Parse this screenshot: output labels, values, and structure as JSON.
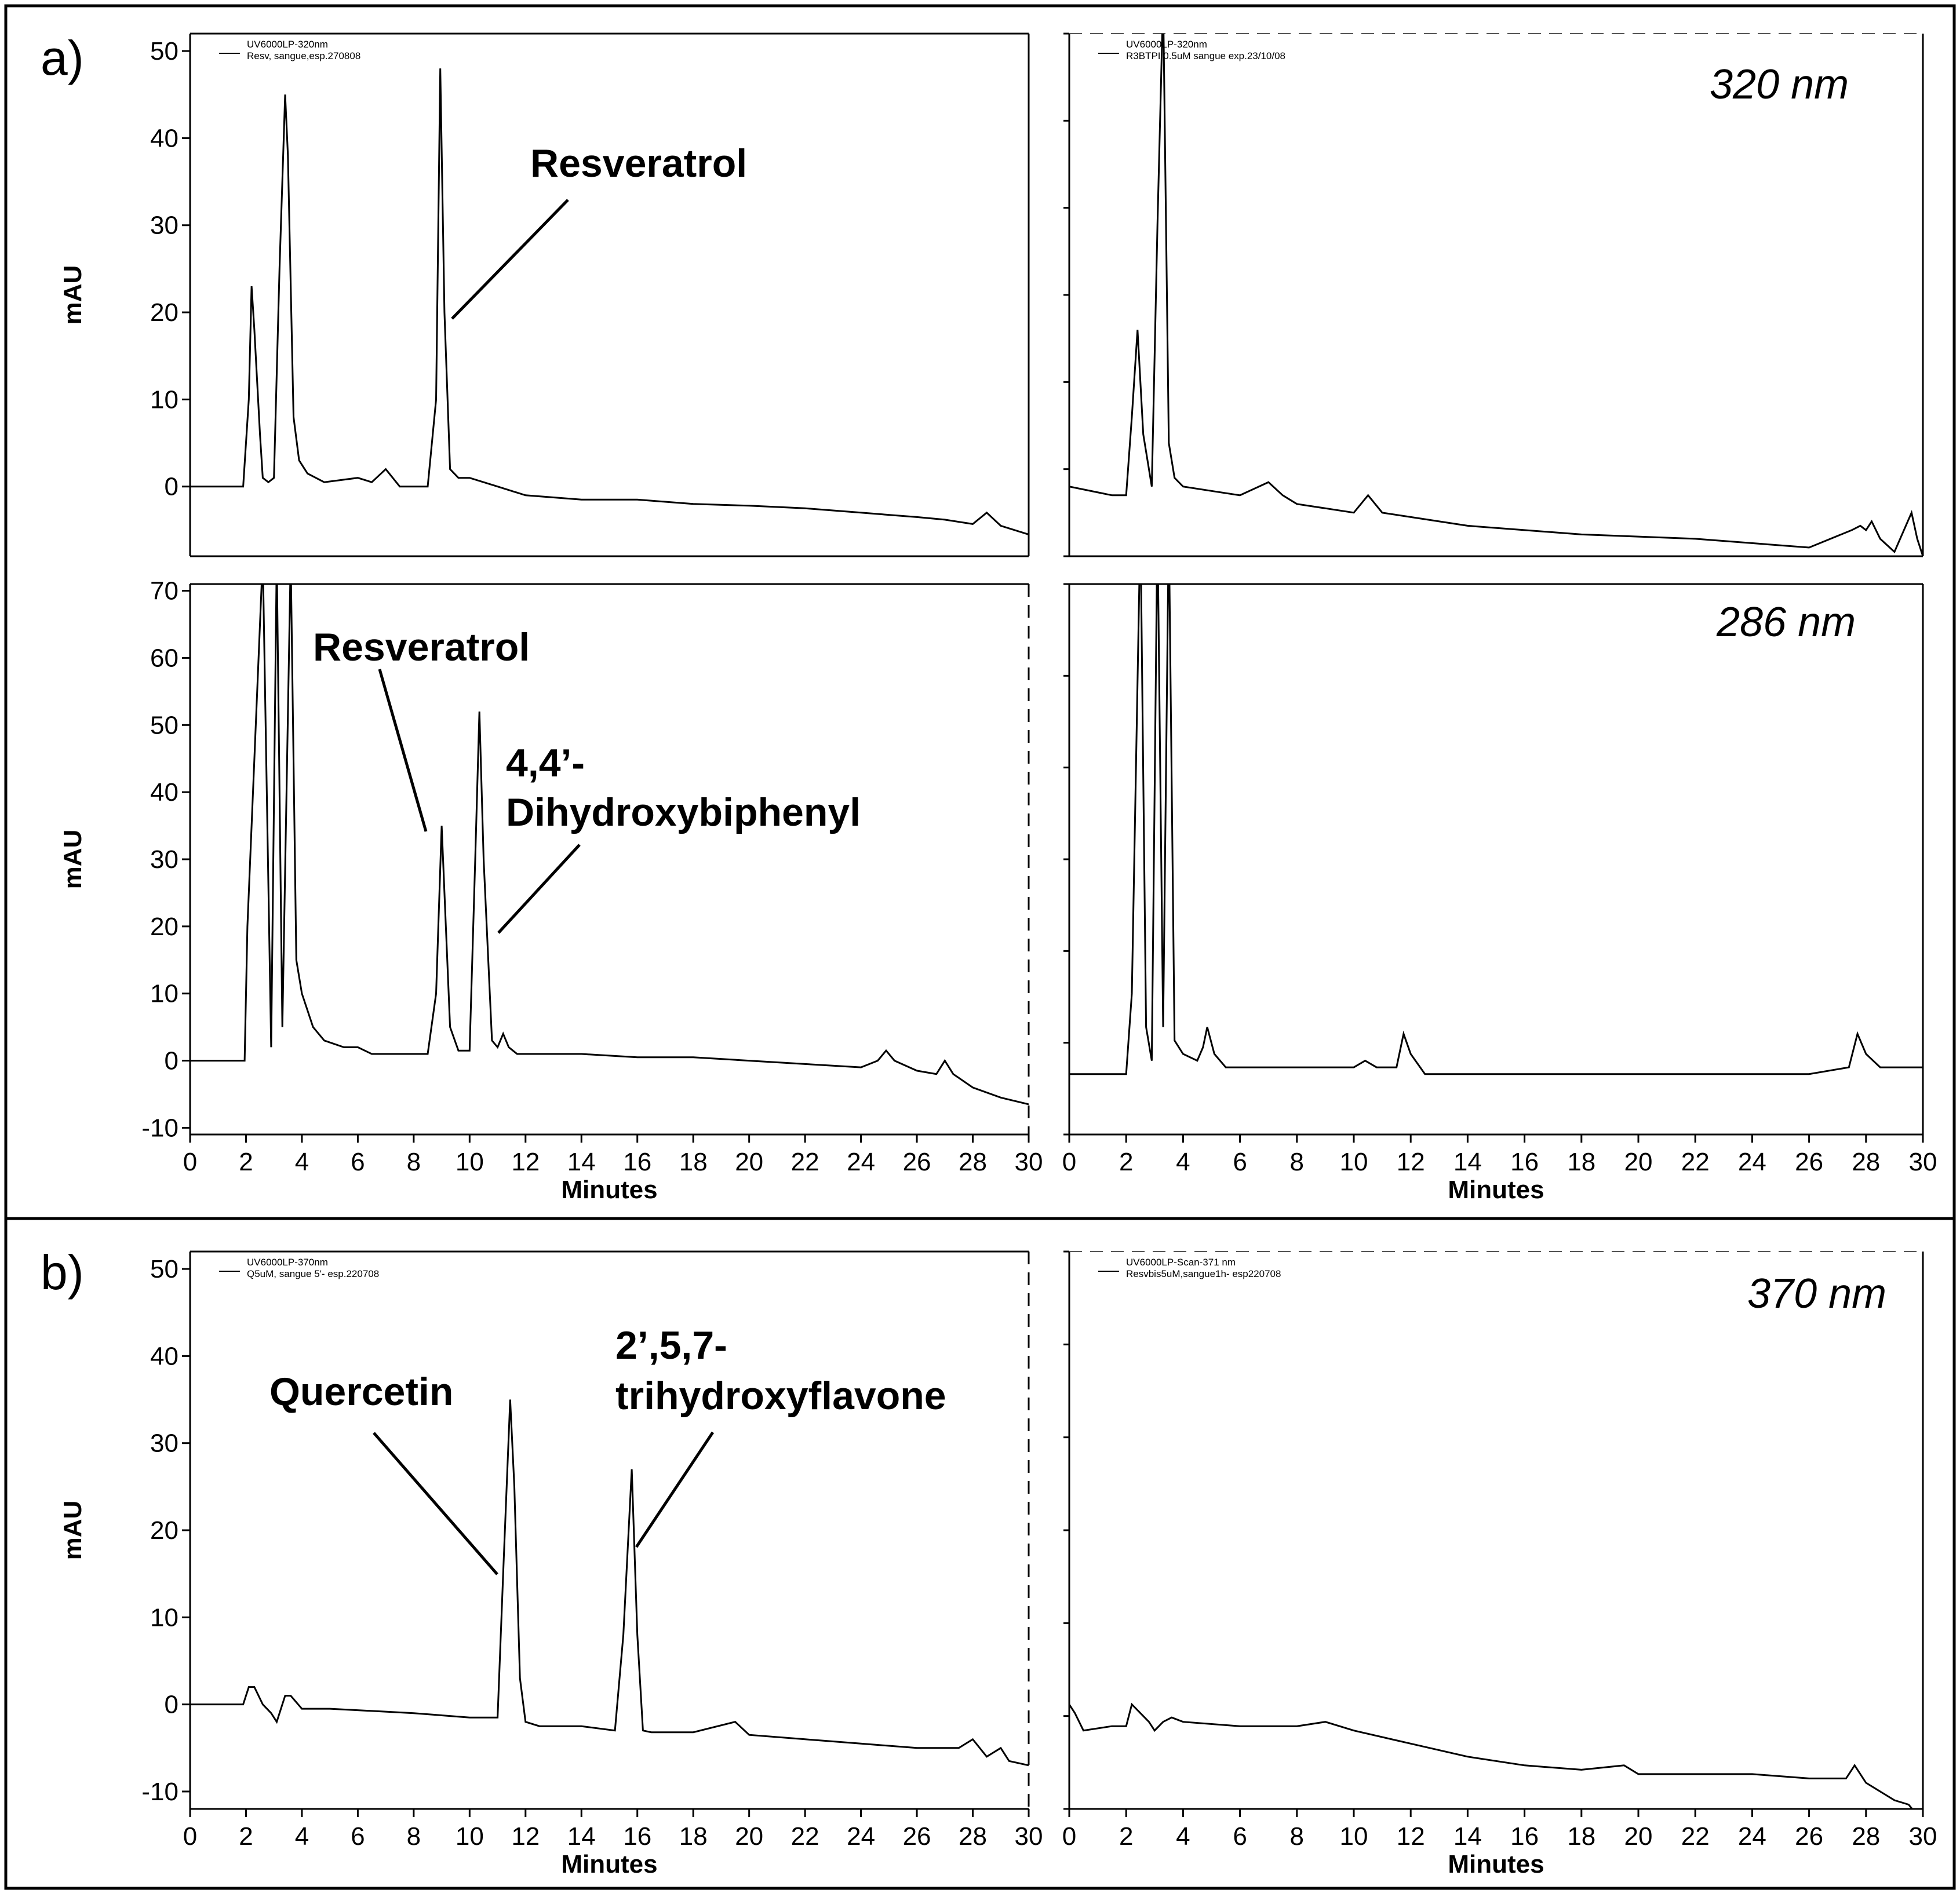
{
  "figure": {
    "panel_a_label": "a)",
    "panel_b_label": "b)",
    "wavelength_a_top": "320 nm",
    "wavelength_a_bottom": "286 nm",
    "wavelength_b": "370 nm"
  },
  "chart_data": [
    {
      "id": "a-top-left",
      "type": "line",
      "title": "",
      "legend": [
        "UV6000LP-320nm",
        "Resv, sangue,esp.270808"
      ],
      "xlabel": "",
      "ylabel": "mAU",
      "xlim": [
        0,
        30
      ],
      "ylim": [
        -8,
        52
      ],
      "yticks": [
        0,
        10,
        20,
        30,
        40,
        50
      ],
      "xticks": [],
      "grid": false,
      "x": [
        0,
        1.9,
        2.1,
        2.2,
        2.3,
        2.5,
        2.6,
        2.8,
        3.0,
        3.2,
        3.4,
        3.5,
        3.7,
        3.9,
        4.2,
        4.8,
        6.0,
        6.5,
        7.0,
        7.5,
        8.5,
        8.8,
        8.95,
        9.1,
        9.3,
        9.6,
        10.0,
        11.0,
        12.0,
        14.0,
        16.0,
        18.0,
        20.0,
        22.0,
        24.0,
        26.0,
        27.0,
        28.0,
        28.5,
        29.0,
        30.0
      ],
      "values": [
        0,
        0,
        10,
        23,
        18,
        6,
        1,
        0.5,
        1,
        25,
        45,
        38,
        8,
        3,
        1.5,
        0.5,
        1,
        0.5,
        2,
        0,
        0,
        10,
        48,
        20,
        2,
        1,
        1,
        0,
        -1,
        -1.5,
        -1.5,
        -2,
        -2.2,
        -2.5,
        -3,
        -3.5,
        -3.8,
        -4.3,
        -3,
        -4.5,
        -5.5
      ],
      "annotations": [
        {
          "text": "Resveratrol",
          "x": 9.0,
          "y": 20
        }
      ]
    },
    {
      "id": "a-top-right",
      "type": "line",
      "title": "",
      "legend": [
        "UV6000LP-320nm",
        "R3BTPI 0.5uM sangue exp.23/10/08"
      ],
      "xlabel": "",
      "ylabel": "",
      "xlim": [
        0,
        30
      ],
      "ylim": [
        -8,
        52
      ],
      "yticks": [],
      "xticks": [],
      "grid": false,
      "x": [
        0,
        1.5,
        2.0,
        2.2,
        2.4,
        2.6,
        2.9,
        3.1,
        3.3,
        3.5,
        3.7,
        4.0,
        5.0,
        6.0,
        7.0,
        7.5,
        8.0,
        10.0,
        10.5,
        11.0,
        14.0,
        18.0,
        22.0,
        26.0,
        27.5,
        27.8,
        28.0,
        28.2,
        28.5,
        29.0,
        29.6,
        29.8,
        30.0
      ],
      "values": [
        0,
        -1,
        -1,
        8,
        18,
        6,
        0,
        30,
        56,
        5,
        1,
        0,
        -0.5,
        -1,
        0.5,
        -1,
        -2,
        -3,
        -1,
        -3,
        -4.5,
        -5.5,
        -6,
        -7,
        -5,
        -4.5,
        -5,
        -4,
        -6,
        -7.5,
        -3,
        -6,
        -8
      ],
      "annotations": []
    },
    {
      "id": "a-bottom-left",
      "type": "line",
      "title": "",
      "legend": [],
      "xlabel": "Minutes",
      "ylabel": "mAU",
      "xlim": [
        0,
        30
      ],
      "ylim": [
        -11,
        71
      ],
      "yticks": [
        -10,
        0,
        10,
        20,
        30,
        40,
        50,
        60,
        70
      ],
      "xticks": [
        0,
        2,
        4,
        6,
        8,
        10,
        12,
        14,
        16,
        18,
        20,
        22,
        24,
        26,
        28,
        30
      ],
      "grid": false,
      "x": [
        0,
        1.95,
        2.05,
        2.6,
        2.9,
        3.1,
        3.3,
        3.6,
        3.8,
        4.0,
        4.4,
        4.8,
        5.5,
        6.0,
        6.5,
        8.5,
        8.8,
        9.0,
        9.1,
        9.3,
        9.6,
        10.0,
        10.2,
        10.35,
        10.5,
        10.8,
        11.0,
        11.2,
        11.4,
        11.7,
        12.0,
        14.0,
        16.0,
        18.0,
        20.0,
        22.0,
        24.0,
        24.6,
        24.9,
        25.2,
        26.0,
        26.7,
        27.0,
        27.3,
        28.0,
        29.0,
        30.0
      ],
      "values": [
        0,
        0,
        20,
        75,
        2,
        75,
        5,
        75,
        15,
        10,
        5,
        3,
        2,
        2,
        1,
        1,
        10,
        35,
        25,
        5,
        1.5,
        1.5,
        30,
        52,
        30,
        3,
        2,
        4,
        2,
        1,
        1,
        1,
        0.5,
        0.5,
        0,
        -0.5,
        -1,
        0,
        1.5,
        0,
        -1.5,
        -2,
        0,
        -2,
        -4,
        -5.5,
        -6.5
      ],
      "annotations": [
        {
          "text": "Resveratrol",
          "x": 8.7,
          "y": 33
        },
        {
          "text": "4,4’-",
          "x": 11.0,
          "y": 18
        },
        {
          "text": "Dihydroxybiphenyl",
          "x": 11.0,
          "y": 18
        }
      ]
    },
    {
      "id": "a-bottom-right",
      "type": "line",
      "title": "",
      "legend": [],
      "xlabel": "Minutes",
      "ylabel": "",
      "xlim": [
        0,
        30
      ],
      "ylim": [
        -11,
        71
      ],
      "yticks": [],
      "xticks": [
        0,
        2,
        4,
        6,
        8,
        10,
        12,
        14,
        16,
        18,
        20,
        22,
        24,
        26,
        28,
        30
      ],
      "grid": false,
      "x": [
        0,
        1.8,
        2.0,
        2.2,
        2.5,
        2.7,
        2.9,
        3.1,
        3.3,
        3.5,
        3.7,
        4.0,
        4.5,
        4.7,
        4.85,
        5.1,
        5.5,
        8.0,
        10.0,
        10.4,
        10.8,
        11.5,
        11.75,
        12.0,
        12.5,
        18.0,
        26.0,
        27.4,
        27.7,
        28.0,
        28.5,
        30.0
      ],
      "values": [
        -2,
        -2,
        -2,
        10,
        80,
        5,
        0,
        80,
        5,
        80,
        3,
        1,
        0,
        2,
        5,
        1,
        -1,
        -1,
        -1,
        0,
        -1,
        -1,
        4,
        1,
        -2,
        -2,
        -2,
        -1,
        4,
        1,
        -1,
        -1
      ],
      "annotations": []
    },
    {
      "id": "b-left",
      "type": "line",
      "title": "",
      "legend": [
        "UV6000LP-370nm",
        "Q5uM, sangue 5'- esp.220708"
      ],
      "xlabel": "Minutes",
      "ylabel": "mAU",
      "xlim": [
        0,
        30
      ],
      "ylim": [
        -12,
        52
      ],
      "yticks": [
        -10,
        0,
        10,
        20,
        30,
        40,
        50
      ],
      "xticks": [
        0,
        2,
        4,
        6,
        8,
        10,
        12,
        14,
        16,
        18,
        20,
        22,
        24,
        26,
        28,
        30
      ],
      "grid": false,
      "x": [
        0,
        1.9,
        2.1,
        2.3,
        2.6,
        2.9,
        3.1,
        3.4,
        3.6,
        4.0,
        5.0,
        8.0,
        10.0,
        11.0,
        11.2,
        11.45,
        11.6,
        11.8,
        12.0,
        12.5,
        14.0,
        15.2,
        15.5,
        15.8,
        16.0,
        16.2,
        16.5,
        18.0,
        19.5,
        20.0,
        22.0,
        24.0,
        26.0,
        27.5,
        28.0,
        28.5,
        29.0,
        29.3,
        30.0
      ],
      "values": [
        0,
        0,
        2,
        2,
        0,
        -1,
        -2,
        1,
        1,
        -0.5,
        -0.5,
        -1,
        -1.5,
        -1.5,
        15,
        35,
        25,
        3,
        -2,
        -2.5,
        -2.5,
        -3,
        8,
        27,
        8,
        -3,
        -3.2,
        -3.2,
        -2,
        -3.5,
        -4,
        -4.5,
        -5,
        -5,
        -4,
        -6,
        -5,
        -6.5,
        -7
      ],
      "annotations": [
        {
          "text": "Quercetin",
          "x": 11.0,
          "y": 16
        },
        {
          "text": "2’,5,7-",
          "x": 15.8,
          "y": 18
        },
        {
          "text": "trihydroxyflavone",
          "x": 15.8,
          "y": 18
        }
      ]
    },
    {
      "id": "b-right",
      "type": "line",
      "title": "",
      "legend": [
        "UV6000LP-Scan-371 nm",
        "Resvbis5uM,sangue1h- esp220708"
      ],
      "xlabel": "Minutes",
      "ylabel": "",
      "xlim": [
        0,
        30
      ],
      "ylim": [
        -12,
        52
      ],
      "yticks": [],
      "xticks": [
        0,
        2,
        4,
        6,
        8,
        10,
        12,
        14,
        16,
        18,
        20,
        22,
        24,
        26,
        28,
        30
      ],
      "grid": false,
      "x": [
        0,
        0.2,
        0.5,
        1.5,
        2.0,
        2.2,
        2.5,
        2.8,
        3.0,
        3.3,
        3.6,
        4.0,
        6.0,
        8.0,
        9.0,
        10.0,
        12.0,
        14.0,
        16.0,
        18.0,
        19.5,
        20.0,
        22.0,
        24.0,
        26.0,
        27.3,
        27.6,
        28.0,
        29.0,
        29.5,
        30.0
      ],
      "values": [
        0,
        -1,
        -3,
        -2.5,
        -2.5,
        0,
        -1,
        -2,
        -3,
        -2,
        -1.5,
        -2,
        -2.5,
        -2.5,
        -2,
        -3,
        -4.5,
        -6,
        -7,
        -7.5,
        -7,
        -8,
        -8,
        -8,
        -8.5,
        -8.5,
        -7,
        -9,
        -11,
        -11.5,
        -13.5
      ],
      "annotations": []
    }
  ]
}
